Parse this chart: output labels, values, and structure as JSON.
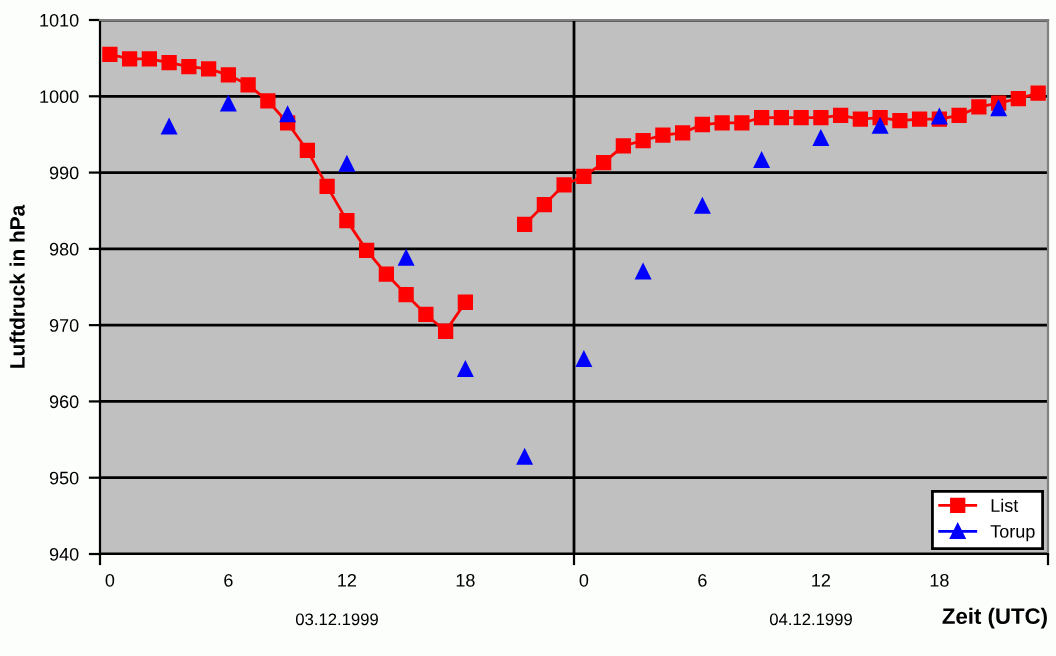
{
  "chart_data": {
    "type": "line",
    "xlabel": "Zeit (UTC)",
    "ylabel": "Luftdruck in hPa",
    "xlim": [
      "1999-12-02T23:30",
      "1999-12-04T23:30"
    ],
    "ylim": [
      940,
      1010
    ],
    "xticks": [
      {
        "value": "1999-12-02T23:30",
        "label": null
      },
      {
        "value": "1999-12-03T00:00",
        "label": "0"
      },
      {
        "value": "1999-12-03T06:00",
        "label": "6"
      },
      {
        "value": "1999-12-03T12:00",
        "label": "12"
      },
      {
        "value": "1999-12-03T18:00",
        "label": "18"
      },
      {
        "value": "1999-12-03T23:30",
        "label": null
      },
      {
        "value": "1999-12-04T00:00",
        "label": "0"
      },
      {
        "value": "1999-12-04T06:00",
        "label": "6"
      },
      {
        "value": "1999-12-04T12:00",
        "label": "12"
      },
      {
        "value": "1999-12-04T18:00",
        "label": "18"
      },
      {
        "value": "1999-12-04T23:30",
        "label": null
      }
    ],
    "yticks": [
      940,
      950,
      960,
      970,
      980,
      990,
      1000,
      1010
    ],
    "grid": "y",
    "legend": "bottom right",
    "ref_lines": [
      {
        "axis": "x",
        "value": "1999-12-03T23:30",
        "color": "#000000"
      }
    ],
    "annotations": [
      "03.12.1999",
      "04.12.1999"
    ],
    "series": [
      {
        "name": "List",
        "color": "#ff0000",
        "marker": "square",
        "x": [
          "1999-12-03T00:00",
          "1999-12-03T01:00",
          "1999-12-03T02:00",
          "1999-12-03T03:00",
          "1999-12-03T04:00",
          "1999-12-03T05:00",
          "1999-12-03T06:00",
          "1999-12-03T07:00",
          "1999-12-03T08:00",
          "1999-12-03T09:00",
          "1999-12-03T10:00",
          "1999-12-03T11:00",
          "1999-12-03T12:00",
          "1999-12-03T13:00",
          "1999-12-03T14:00",
          "1999-12-03T15:00",
          "1999-12-03T16:00",
          "1999-12-03T17:00",
          "1999-12-03T18:00",
          "1999-12-03T21:00",
          "1999-12-03T22:00",
          "1999-12-03T23:00",
          "1999-12-04T00:00",
          "1999-12-04T01:00",
          "1999-12-04T02:00",
          "1999-12-04T03:00",
          "1999-12-04T04:00",
          "1999-12-04T05:00",
          "1999-12-04T06:00",
          "1999-12-04T07:00",
          "1999-12-04T08:00",
          "1999-12-04T09:00",
          "1999-12-04T10:00",
          "1999-12-04T11:00",
          "1999-12-04T12:00",
          "1999-12-04T13:00",
          "1999-12-04T14:00",
          "1999-12-04T15:00",
          "1999-12-04T16:00",
          "1999-12-04T17:00",
          "1999-12-04T18:00",
          "1999-12-04T19:00",
          "1999-12-04T20:00",
          "1999-12-04T21:00",
          "1999-12-04T22:00",
          "1999-12-04T23:00"
        ],
        "values": [
          1005.5,
          1004.9,
          1004.9,
          1004.4,
          1003.9,
          1003.6,
          1002.8,
          1001.5,
          999.4,
          996.5,
          992.9,
          988.2,
          983.7,
          979.8,
          976.7,
          974.0,
          971.4,
          969.2,
          973.0,
          983.2,
          985.8,
          988.4,
          989.5,
          991.3,
          993.5,
          994.2,
          994.9,
          995.2,
          996.3,
          996.5,
          996.5,
          997.2,
          997.2,
          997.2,
          997.2,
          997.5,
          997.0,
          997.2,
          996.8,
          997.0,
          997.0,
          997.5,
          998.6,
          999.1,
          999.7,
          1000.4
        ]
      },
      {
        "name": "Torup",
        "type": "scatter",
        "color": "#0000ff",
        "marker": "triangle",
        "x": [
          "1999-12-03T03:00",
          "1999-12-03T06:00",
          "1999-12-03T09:00",
          "1999-12-03T12:00",
          "1999-12-03T15:00",
          "1999-12-03T18:00",
          "1999-12-03T21:00",
          "1999-12-04T00:00",
          "1999-12-04T03:00",
          "1999-12-04T06:00",
          "1999-12-04T09:00",
          "1999-12-04T12:00",
          "1999-12-04T15:00",
          "1999-12-04T18:00",
          "1999-12-04T21:00"
        ],
        "values": [
          996.0,
          999.0,
          997.6,
          991.1,
          978.8,
          964.2,
          952.7,
          965.5,
          977.0,
          985.6,
          991.6,
          994.5,
          996.1,
          997.3,
          998.4
        ]
      }
    ]
  }
}
